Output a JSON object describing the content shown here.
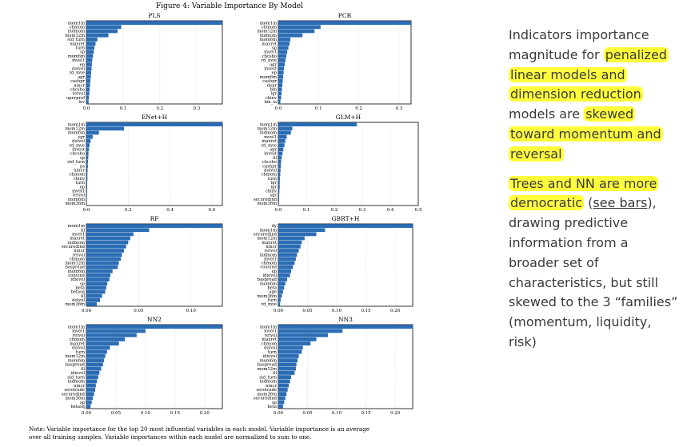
{
  "figure": {
    "title": "Figure 4: Variable Importance By Model",
    "note_line1": "Note: Variable importance for the top 20 most influential variables in each model. Variable importance is an average",
    "note_line2": "over all training samples. Variable importances within each model are normalized to sum to one."
  },
  "colors": {
    "bar": "#2b6cb5",
    "axis": "#000000",
    "grid": "#bbbbbb",
    "highlight": "#ffff3c",
    "text": "#3a3a3a"
  },
  "chart_data": [
    {
      "type": "bar",
      "orientation": "horizontal",
      "title": "PLS",
      "xlim": [
        0,
        0.37
      ],
      "ticks": [
        0,
        0.1,
        0.2,
        0.3
      ],
      "tick_labels": [
        "0.0",
        "0.1",
        "0.2",
        "0.3"
      ],
      "grid": true,
      "categories": [
        "mom1m",
        "chmom",
        "indmom",
        "mom12m",
        "std_turn",
        "maxret",
        "turn",
        "sp",
        "mom6m",
        "mvel1",
        "ep",
        "dolvol",
        "rd_mve",
        "agr",
        "cashpr",
        "nincr",
        "chcsho",
        "retvol",
        "operprof",
        "lev"
      ],
      "values": [
        0.37,
        0.095,
        0.085,
        0.06,
        0.03,
        0.025,
        0.022,
        0.02,
        0.018,
        0.016,
        0.015,
        0.014,
        0.013,
        0.012,
        0.011,
        0.01,
        0.009,
        0.008,
        0.007,
        0.006
      ]
    },
    {
      "type": "bar",
      "orientation": "horizontal",
      "title": "PCR",
      "xlim": [
        0,
        0.33
      ],
      "ticks": [
        0,
        0.1,
        0.2,
        0.3
      ],
      "tick_labels": [
        "0.0",
        "0.1",
        "0.2",
        "0.3"
      ],
      "grid": true,
      "categories": [
        "mom1m",
        "chmom",
        "mom12m",
        "indmom",
        "mom6m",
        "maxret",
        "sp",
        "mvel1",
        "chcsho",
        "rd_mve",
        "agr",
        "invest",
        "ep",
        "mom6m",
        "cashpr",
        "depr",
        "bm",
        "lgr",
        "chinv",
        "bm_ia"
      ],
      "values": [
        0.33,
        0.105,
        0.09,
        0.06,
        0.03,
        0.028,
        0.025,
        0.022,
        0.02,
        0.018,
        0.016,
        0.014,
        0.013,
        0.012,
        0.011,
        0.01,
        0.009,
        0.008,
        0.007,
        0.005
      ]
    },
    {
      "type": "bar",
      "orientation": "horizontal",
      "title": "ENet+H",
      "xlim": [
        0,
        0.65
      ],
      "ticks": [
        0,
        0.2,
        0.4,
        0.6
      ],
      "tick_labels": [
        "0.0",
        "0.2",
        "0.4",
        "0.6"
      ],
      "grid": true,
      "categories": [
        "mom1m",
        "mom12m",
        "mom6m",
        "sgr",
        "dolvol",
        "rd_mve",
        "invest",
        "chcsho",
        "sp",
        "std_turn",
        "ps",
        "nincr",
        "chmom",
        "chinv",
        "turn",
        "ep",
        "mvel1",
        "retvol",
        "mom6m",
        "mom36m"
      ],
      "values": [
        0.65,
        0.18,
        0.06,
        0.03,
        0.02,
        0.015,
        0.012,
        0.01,
        0.009,
        0.008,
        0.007,
        0.006,
        0.005,
        0.005,
        0.004,
        0.004,
        0.003,
        0.003,
        0.002,
        0.002
      ]
    },
    {
      "type": "bar",
      "orientation": "horizontal",
      "title": "GLM+H",
      "xlim": [
        0,
        0.5
      ],
      "ticks": [
        0,
        0.1,
        0.2,
        0.3,
        0.4,
        0.5
      ],
      "tick_labels": [
        "0.0",
        "0.1",
        "0.2",
        "0.3",
        "0.4",
        "0.5"
      ],
      "grid": true,
      "categories": [
        "mom1m",
        "mom12m",
        "indmom",
        "mvel1",
        "maxret",
        "rd_mve",
        "agr",
        "invest",
        "ill",
        "chcsho",
        "cashpr",
        "dolvol",
        "chmom",
        "turn",
        "lgr",
        "lgr",
        "chinv",
        "sgr",
        "securedind",
        "mom36m"
      ],
      "values": [
        0.28,
        0.05,
        0.045,
        0.03,
        0.025,
        0.022,
        0.018,
        0.015,
        0.012,
        0.01,
        0.009,
        0.008,
        0.007,
        0.006,
        0.005,
        0.005,
        0.004,
        0.003,
        0.003,
        0.002
      ]
    },
    {
      "type": "bar",
      "orientation": "horizontal",
      "title": "RF",
      "xlim": [
        0,
        0.13
      ],
      "ticks": [
        0,
        0.05,
        0.1
      ],
      "tick_labels": [
        "0.00",
        "0.05",
        "0.10"
      ],
      "grid": true,
      "categories": [
        "mom1m",
        "ill",
        "mvel1",
        "maxret",
        "indmom",
        "securedind",
        "nincr",
        "retvol",
        "chmom",
        "mom12m",
        "baspread",
        "mom6m",
        "convind",
        "idiovol",
        "sp",
        "beta",
        "betasq",
        "ill",
        "dolvol",
        "mom36m"
      ],
      "values": [
        0.13,
        0.06,
        0.045,
        0.042,
        0.04,
        0.038,
        0.036,
        0.034,
        0.033,
        0.031,
        0.03,
        0.025,
        0.023,
        0.022,
        0.02,
        0.019,
        0.018,
        0.015,
        0.013,
        0.01
      ]
    },
    {
      "type": "bar",
      "orientation": "horizontal",
      "title": "GBRT+H",
      "xlim": [
        0,
        0.23
      ],
      "ticks": [
        0,
        0.05,
        0.1,
        0.15,
        0.2
      ],
      "tick_labels": [
        "0.00",
        "0.05",
        "0.10",
        "0.15",
        "0.20"
      ],
      "grid": true,
      "categories": [
        "dy",
        "mom1m",
        "securedind",
        "mom12m",
        "maxret",
        "nincr",
        "retvol",
        "indmom",
        "mvel1",
        "chmom",
        "convind",
        "ep",
        "idiovol",
        "baspread",
        "mom6m",
        "beta",
        "age",
        "mom36m",
        "turn",
        "rd_mve"
      ],
      "values": [
        0.23,
        0.08,
        0.065,
        0.045,
        0.04,
        0.038,
        0.035,
        0.032,
        0.03,
        0.028,
        0.025,
        0.022,
        0.02,
        0.015,
        0.012,
        0.01,
        0.008,
        0.006,
        0.004,
        0.003
      ]
    },
    {
      "type": "bar",
      "orientation": "horizontal",
      "title": "NN2",
      "xlim": [
        0,
        0.23
      ],
      "ticks": [
        0,
        0.05,
        0.1,
        0.15,
        0.2
      ],
      "tick_labels": [
        "0.00",
        "0.05",
        "0.10",
        "0.15",
        "0.20"
      ],
      "grid": true,
      "categories": [
        "mom1m",
        "mvel1",
        "retvol",
        "chmom",
        "maxret",
        "dolvol",
        "turn",
        "mom12m",
        "mom6m",
        "baspread",
        "ill",
        "idiovol",
        "std_turn",
        "indmom",
        "nincr",
        "zerotrade",
        "securedind",
        "mom36m",
        "sp",
        "betasq"
      ],
      "values": [
        0.23,
        0.1,
        0.085,
        0.065,
        0.055,
        0.04,
        0.035,
        0.032,
        0.03,
        0.028,
        0.025,
        0.022,
        0.02,
        0.018,
        0.016,
        0.015,
        0.013,
        0.011,
        0.009,
        0.007
      ]
    },
    {
      "type": "bar",
      "orientation": "horizontal",
      "title": "NN3",
      "xlim": [
        0,
        0.23
      ],
      "ticks": [
        0,
        0.05,
        0.1,
        0.15,
        0.2
      ],
      "tick_labels": [
        "0.00",
        "0.05",
        "0.10",
        "0.15",
        "0.20"
      ],
      "grid": true,
      "categories": [
        "mom1m",
        "mvel1",
        "retvol",
        "maxret",
        "chmom",
        "dolvol",
        "turn",
        "idiovol",
        "mom6m",
        "baspread",
        "mom12m",
        "ill",
        "std_turn",
        "indmom",
        "nincr",
        "zerotrade",
        "mom36m",
        "securedind",
        "sp",
        "beta"
      ],
      "values": [
        0.23,
        0.11,
        0.085,
        0.065,
        0.055,
        0.042,
        0.04,
        0.035,
        0.033,
        0.031,
        0.03,
        0.028,
        0.022,
        0.02,
        0.018,
        0.016,
        0.014,
        0.012,
        0.01,
        0.008
      ]
    }
  ],
  "sidebar": {
    "p1_plain1": "Indicators importance magnitude for ",
    "p1_hl1": "penalized linear models and dimension reduction",
    "p1_plain2": " models are ",
    "p1_hl2": "skewed toward momentum and reversal",
    "p2_hl1": "Trees and NN are more democratic",
    "p2_plain1": " (",
    "p2_link": "see bars",
    "p2_plain2": "), drawing predictive information from a broader set of characteristics, but still skewed to the 3 “families” (momentum, liquidity, risk)"
  }
}
